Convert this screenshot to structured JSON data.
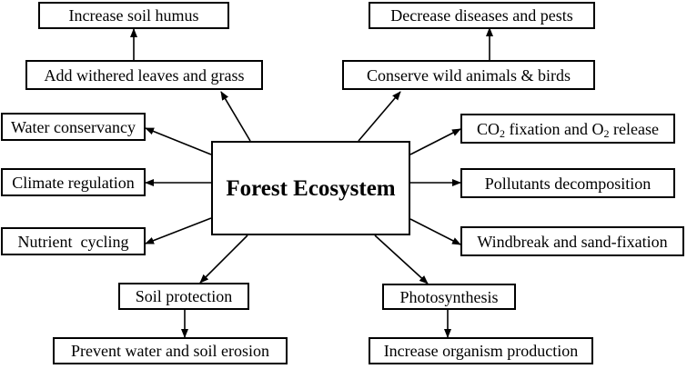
{
  "center": {
    "label": "Forest Ecosystem"
  },
  "nodes": {
    "increase_soil_humus": "Increase soil humus",
    "add_withered_leaves": "Add withered leaves and grass",
    "decrease_diseases": "Decrease diseases and pests",
    "conserve_wild_animals": "Conserve wild animals & birds",
    "water_conservancy": "Water conservancy",
    "climate_regulation": "Climate regulation",
    "nutrient_cycling": "Nutrient  cycling",
    "co2_fixation": {
      "p1": "CO",
      "sub1": "2",
      "p2": " fixation and O",
      "sub2": "2",
      "p3": " release"
    },
    "pollutants_decomposition": "Pollutants decomposition",
    "windbreak": "Windbreak and sand-fixation",
    "soil_protection": "Soil protection",
    "prevent_erosion": "Prevent water and soil erosion",
    "photosynthesis": "Photosynthesis",
    "increase_production": "Increase organism production"
  }
}
